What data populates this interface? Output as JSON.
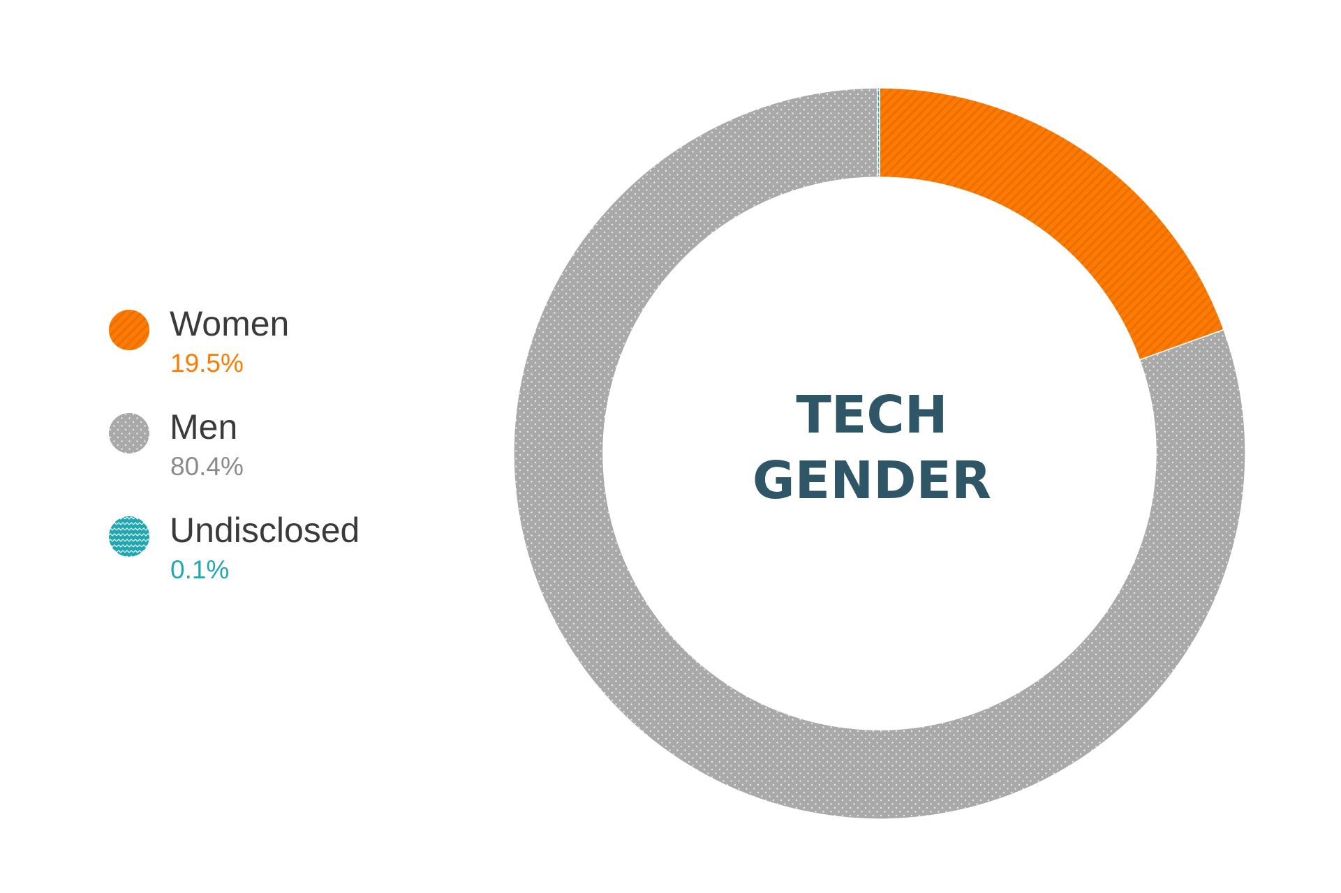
{
  "chart_data": {
    "type": "pie",
    "title_lines": [
      "TECH",
      "GENDER"
    ],
    "categories": [
      "Women",
      "Men",
      "Undisclosed"
    ],
    "values": [
      19.5,
      80.4,
      0.1
    ],
    "value_labels": [
      "19.5%",
      "80.4%",
      "0.1%"
    ],
    "units": "%",
    "colors": [
      "#ff7a00",
      "#a9a9a9",
      "#1fa8b4"
    ],
    "patterns": [
      "diagonal-stripes",
      "dots",
      "waves"
    ],
    "legend": "left",
    "donut": true
  }
}
